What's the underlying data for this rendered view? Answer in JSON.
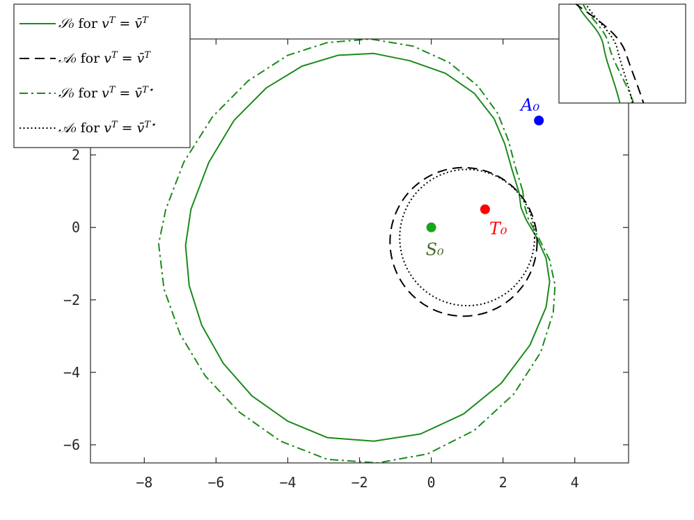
{
  "chart_data": {
    "type": "line",
    "title": "",
    "xlabel": "",
    "ylabel": "",
    "xlim": [
      -9.5,
      5.5
    ],
    "ylim": [
      -6.5,
      5.2
    ],
    "xticks": [
      "−8",
      "−6",
      "−4",
      "−2",
      "0",
      "2",
      "4"
    ],
    "yticks": [
      "−6",
      "−4",
      "−2",
      "0",
      "2"
    ],
    "grid": false,
    "legend_position": "top-left",
    "series": [
      {
        "name": "𝒮₀ for vᵀ = v̄ᵀ",
        "style": "solid",
        "color": "#1a8a1a",
        "shape": "cardioid-like loop",
        "extent_x": [
          -6.85,
          3.3
        ],
        "extent_y": [
          -5.9,
          4.8
        ]
      },
      {
        "name": "𝒜₀ for vᵀ = v̄ᵀ",
        "style": "dashed",
        "color": "#000000",
        "shape": "circle",
        "center": [
          0.9,
          -0.4
        ],
        "radius": 2.05
      },
      {
        "name": "𝒮₀ for vᵀ = v̄ᵀ⋆",
        "style": "dashdot",
        "color": "#1a8a1a",
        "shape": "cardioid-like loop",
        "extent_x": [
          -7.6,
          3.4
        ],
        "extent_y": [
          -6.5,
          5.2
        ]
      },
      {
        "name": "𝒜₀ for vᵀ = v̄ᵀ⋆",
        "style": "dotted",
        "color": "#000000",
        "shape": "circle",
        "center": [
          1.0,
          -0.28
        ],
        "radius": 1.88
      }
    ],
    "points": [
      {
        "label": "S₀",
        "x": 0,
        "y": 0,
        "color": "#1aa51a",
        "label_color": "#4a6b2a"
      },
      {
        "label": "T₀",
        "x": 1.5,
        "y": 0.5,
        "color": "#ff0000",
        "label_color": "#ff0000"
      },
      {
        "label": "A₀",
        "x": 3.0,
        "y": 2.95,
        "color": "#0000ff",
        "label_color": "#0000ff"
      }
    ],
    "inset": {
      "type": "zoom",
      "description": "magnified view of curves near the upper right"
    }
  },
  "legend": {
    "entries": [
      {
        "prefix": "𝒮₀",
        "middle": " for ",
        "var": "v",
        "sup": "T",
        "eq": " = ",
        "rhs": "v̄",
        "rhs_sup": "T"
      },
      {
        "prefix": "𝒜₀",
        "middle": " for ",
        "var": "v",
        "sup": "T",
        "eq": " = ",
        "rhs": "v̄",
        "rhs_sup": "T"
      },
      {
        "prefix": "𝒮₀",
        "middle": " for ",
        "var": "v",
        "sup": "T",
        "eq": " = ",
        "rhs": "v̄",
        "rhs_sup": "T⋆"
      },
      {
        "prefix": "𝒜₀",
        "middle": " for ",
        "var": "v",
        "sup": "T",
        "eq": " = ",
        "rhs": "v̄",
        "rhs_sup": "T⋆"
      }
    ]
  },
  "colors": {
    "green": "#1a8a1a",
    "black": "#000000",
    "red": "#ff0000",
    "blue": "#0000ff",
    "s0_label": "#4a6b2a"
  }
}
